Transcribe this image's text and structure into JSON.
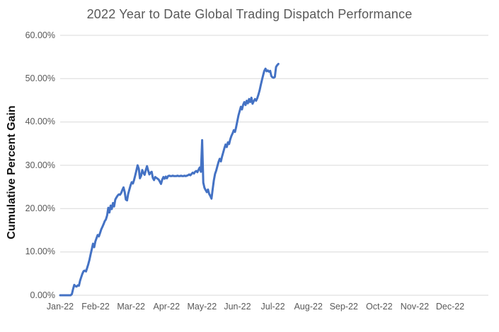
{
  "chart_data": {
    "type": "line",
    "title": "2022 Year to Date Global Trading Dispatch Performance",
    "ylabel": "Cumulative Percent Gain",
    "xlabel": "",
    "ylim": [
      0,
      60
    ],
    "y_tick_labels": [
      "0.00%",
      "10.00%",
      "20.00%",
      "30.00%",
      "40.00%",
      "50.00%",
      "60.00%"
    ],
    "x_tick_labels": [
      "Jan-22",
      "Feb-22",
      "Mar-22",
      "Apr-22",
      "May-22",
      "Jun-22",
      "Jul-22",
      "Aug-22",
      "Sep-22",
      "Oct-22",
      "Nov-22",
      "Dec-22"
    ],
    "x_axis_total_days": 365,
    "grid": "horizontal",
    "legend": "none",
    "colors": {
      "line": "#4472C4",
      "gridline": "#D9D9D9",
      "title_text": "#595959",
      "tick_text": "#595959",
      "ylabel_text": "#111111",
      "background": "#FFFFFF"
    },
    "series": [
      {
        "name": "Cumulative Percent Gain",
        "color": "#4472C4",
        "start_day": 1,
        "unit": "%",
        "values": [
          0,
          0,
          0,
          0,
          0,
          0,
          0,
          0,
          0,
          0,
          0.3,
          1.4,
          2.4,
          2.1,
          2.0,
          2.3,
          2.2,
          3.4,
          4.2,
          5.0,
          5.6,
          5.7,
          5.5,
          6.3,
          7.2,
          8.2,
          9.5,
          10.7,
          11.9,
          11.1,
          12.4,
          13.2,
          13.9,
          13.6,
          14.4,
          15.2,
          15.8,
          16.4,
          17.1,
          17.5,
          18.4,
          20.2,
          19.1,
          20.7,
          19.9,
          21.3,
          20.5,
          22.1,
          22.6,
          23.0,
          23.3,
          23.2,
          23.6,
          24.3,
          24.9,
          23.8,
          22.1,
          21.9,
          23.4,
          24.4,
          25.4,
          26.1,
          25.8,
          26.6,
          27.7,
          28.8,
          30.0,
          29.2,
          27.0,
          27.6,
          28.9,
          28.2,
          27.8,
          28.9,
          29.8,
          28.8,
          27.9,
          28.3,
          28.5,
          27.1,
          26.6,
          27.3,
          27.1,
          26.9,
          26.7,
          26.2,
          25.7,
          26.7,
          27.3,
          26.9,
          27.4,
          27.0,
          27.5,
          27.6,
          27.5,
          27.5,
          27.6,
          27.5,
          27.5,
          27.5,
          27.6,
          27.5,
          27.5,
          27.6,
          27.5,
          27.5,
          27.6,
          27.5,
          27.6,
          27.7,
          27.9,
          27.7,
          28.0,
          28.3,
          28.1,
          28.5,
          28.7,
          28.4,
          29.0,
          29.5,
          28.5,
          35.8,
          26.0,
          24.8,
          24.3,
          23.8,
          24.4,
          23.4,
          22.9,
          22.3,
          24.5,
          26.5,
          28.0,
          28.8,
          29.8,
          30.8,
          31.5,
          30.9,
          32.0,
          33.0,
          34.0,
          34.8,
          34.2,
          35.3,
          34.9,
          36.0,
          36.8,
          37.4,
          38.1,
          37.7,
          38.8,
          40.2,
          41.5,
          42.5,
          43.5,
          42.9,
          44.0,
          44.6,
          43.9,
          44.9,
          44.3,
          45.3,
          44.6,
          45.6,
          44.2,
          44.8,
          45.3,
          44.9,
          45.5,
          46.3,
          47.3,
          48.5,
          49.7,
          50.8,
          51.8,
          52.3,
          51.7,
          51.9,
          51.6,
          51.8,
          50.6,
          50.3,
          50.2,
          50.4,
          52.7,
          53.1,
          53.4
        ]
      }
    ]
  }
}
